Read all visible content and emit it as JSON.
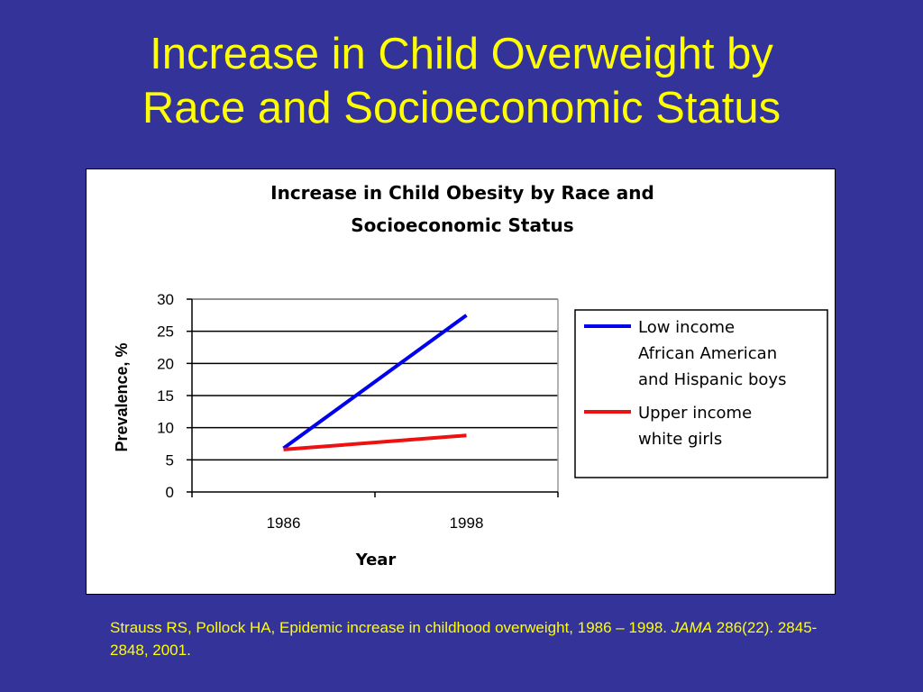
{
  "slide": {
    "title_line1": "Increase in Child Overweight by",
    "title_line2": "Race and Socioeconomic Status"
  },
  "citation": {
    "part1": "Strauss RS, Pollock HA, Epidemic increase in childhood overweight, 1986 – 1998.  ",
    "journal": "JAMA",
    "part2": " 286(22).  2845-2848, 2001."
  },
  "colors": {
    "background": "#333399",
    "title_text": "#ffff00",
    "series_low_income": "#0000ee",
    "series_upper_income": "#ee1111"
  },
  "chart_data": {
    "type": "line",
    "title_line1": "Increase in Child Obesity by Race and",
    "title_line2": "Socioeconomic Status",
    "xlabel": "Year",
    "ylabel": "Prevalence, %",
    "categories": [
      "1986",
      "1998"
    ],
    "ylim": [
      0,
      30
    ],
    "yticks": [
      "0",
      "5",
      "10",
      "15",
      "20",
      "25",
      "30"
    ],
    "grid": true,
    "legend_position": "right",
    "series": [
      {
        "name_lines": [
          "Low income",
          "African American",
          "and Hispanic boys"
        ],
        "values": [
          6.8,
          27.5
        ],
        "color": "#0000ee"
      },
      {
        "name_lines": [
          "Upper income",
          "white girls"
        ],
        "values": [
          6.6,
          8.8
        ],
        "color": "#ee1111"
      }
    ]
  }
}
